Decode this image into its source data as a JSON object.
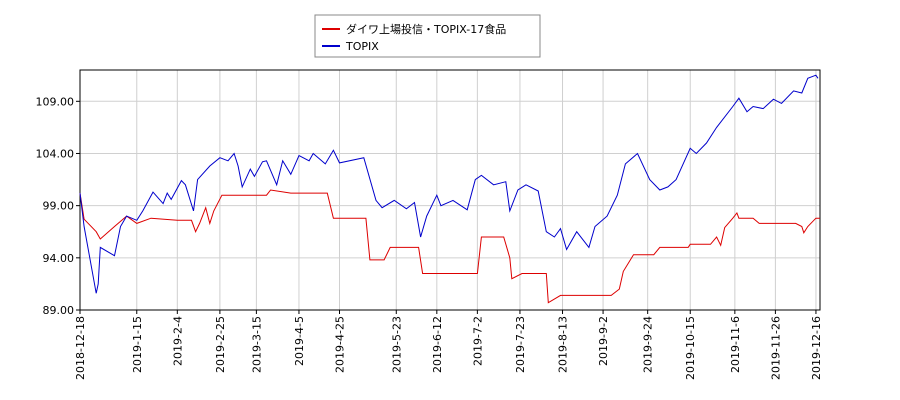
{
  "chart_data": {
    "type": "line",
    "series": [
      {
        "name": "ダイワ上場投信・TOPIX-17食品",
        "color": "#dd0000",
        "x": [
          "2018-12-18",
          "2018-12-20",
          "2018-12-26",
          "2018-12-28",
          "2019-1-4",
          "2019-1-10",
          "2019-1-15",
          "2019-1-22",
          "2019-2-4",
          "2019-2-11",
          "2019-2-13",
          "2019-2-15",
          "2019-2-18",
          "2019-2-20",
          "2019-2-22",
          "2019-2-26",
          "2019-3-20",
          "2019-3-22",
          "2019-4-1",
          "2019-4-19",
          "2019-4-22",
          "2019-5-8",
          "2019-5-10",
          "2019-5-17",
          "2019-5-20",
          "2019-6-3",
          "2019-6-5",
          "2019-7-2",
          "2019-7-4",
          "2019-7-15",
          "2019-7-18",
          "2019-7-19",
          "2019-7-24",
          "2019-8-5",
          "2019-8-6",
          "2019-8-12",
          "2019-9-6",
          "2019-9-10",
          "2019-9-12",
          "2019-9-17",
          "2019-9-27",
          "2019-9-30",
          "2019-10-14",
          "2019-10-15",
          "2019-10-25",
          "2019-10-28",
          "2019-10-30",
          "2019-11-1",
          "2019-11-5",
          "2019-11-7",
          "2019-11-8",
          "2019-11-15",
          "2019-11-18",
          "2019-12-6",
          "2019-12-9",
          "2019-12-10",
          "2019-12-12",
          "2019-12-16",
          "2019-12-18"
        ],
        "values": [
          100.2,
          97.7,
          96.5,
          95.8,
          97.0,
          98.0,
          97.3,
          97.8,
          97.6,
          97.6,
          96.5,
          97.3,
          98.8,
          97.3,
          98.5,
          100.0,
          100.0,
          100.5,
          100.2,
          100.2,
          97.8,
          97.8,
          93.8,
          93.8,
          95.0,
          95.0,
          92.5,
          92.5,
          96.0,
          96.0,
          94.0,
          92.0,
          92.5,
          92.5,
          89.7,
          90.4,
          90.4,
          91.0,
          92.7,
          94.3,
          94.3,
          95.0,
          95.0,
          95.3,
          95.3,
          96.0,
          95.2,
          96.9,
          97.8,
          98.3,
          97.8,
          97.8,
          97.3,
          97.3,
          97.0,
          96.4,
          97.0,
          97.8,
          97.8
        ]
      },
      {
        "name": "TOPIX",
        "color": "#0000cc",
        "x": [
          "2018-12-18",
          "2018-12-20",
          "2018-12-26",
          "2018-12-27",
          "2018-12-28",
          "2019-1-4",
          "2019-1-7",
          "2019-1-10",
          "2019-1-15",
          "2019-1-18",
          "2019-1-23",
          "2019-1-28",
          "2019-1-30",
          "2019-2-1",
          "2019-2-6",
          "2019-2-8",
          "2019-2-12",
          "2019-2-14",
          "2019-2-20",
          "2019-2-25",
          "2019-3-1",
          "2019-3-4",
          "2019-3-6",
          "2019-3-8",
          "2019-3-12",
          "2019-3-14",
          "2019-3-18",
          "2019-3-20",
          "2019-3-25",
          "2019-3-28",
          "2019-4-1",
          "2019-4-5",
          "2019-4-10",
          "2019-4-12",
          "2019-4-18",
          "2019-4-22",
          "2019-4-25",
          "2019-5-7",
          "2019-5-13",
          "2019-5-16",
          "2019-5-22",
          "2019-5-28",
          "2019-6-1",
          "2019-6-4",
          "2019-6-7",
          "2019-6-12",
          "2019-6-14",
          "2019-6-20",
          "2019-6-27",
          "2019-7-1",
          "2019-7-4",
          "2019-7-10",
          "2019-7-16",
          "2019-7-18",
          "2019-7-22",
          "2019-7-26",
          "2019-8-1",
          "2019-8-5",
          "2019-8-9",
          "2019-8-12",
          "2019-8-15",
          "2019-8-20",
          "2019-8-26",
          "2019-8-29",
          "2019-9-4",
          "2019-9-9",
          "2019-9-13",
          "2019-9-19",
          "2019-9-25",
          "2019-9-30",
          "2019-10-4",
          "2019-10-8",
          "2019-10-15",
          "2019-10-18",
          "2019-10-23",
          "2019-10-28",
          "2019-11-5",
          "2019-11-8",
          "2019-11-12",
          "2019-11-15",
          "2019-11-20",
          "2019-11-25",
          "2019-11-29",
          "2019-12-5",
          "2019-12-9",
          "2019-12-12",
          "2019-12-16",
          "2019-12-17"
        ],
        "values": [
          100.2,
          97.0,
          90.6,
          91.5,
          95.0,
          94.2,
          97.0,
          98.0,
          97.6,
          98.5,
          100.3,
          99.2,
          100.2,
          99.6,
          101.4,
          101.0,
          98.5,
          101.5,
          102.8,
          103.6,
          103.3,
          104.0,
          102.8,
          100.8,
          102.5,
          101.8,
          103.2,
          103.3,
          101.0,
          103.3,
          102.0,
          103.8,
          103.3,
          104.0,
          103.0,
          104.3,
          103.1,
          103.6,
          99.5,
          98.8,
          99.5,
          98.7,
          99.3,
          96.0,
          98.0,
          100.0,
          99.0,
          99.5,
          98.6,
          101.5,
          101.9,
          101.0,
          101.3,
          98.5,
          100.5,
          101.0,
          100.4,
          96.5,
          96.0,
          96.8,
          94.8,
          96.5,
          95.0,
          97.0,
          98.0,
          100.0,
          103.0,
          104.0,
          101.5,
          100.5,
          100.8,
          101.5,
          104.5,
          104.0,
          105.0,
          106.5,
          108.5,
          109.3,
          108.0,
          108.5,
          108.3,
          109.2,
          108.8,
          110.0,
          109.8,
          111.2,
          111.5,
          111.2
        ]
      }
    ],
    "xlim": [
      "2018-12-18",
      "2019-12-18"
    ],
    "xticks": [
      "2018-12-18",
      "2019-1-15",
      "2019-2-4",
      "2019-2-25",
      "2019-3-15",
      "2019-4-5",
      "2019-4-25",
      "2019-5-23",
      "2019-6-12",
      "2019-7-2",
      "2019-7-23",
      "2019-8-13",
      "2019-9-2",
      "2019-9-24",
      "2019-10-15",
      "2019-11-6",
      "2019-11-26",
      "2019-12-16"
    ],
    "ylim": [
      89,
      112
    ],
    "yticks": [
      {
        "value": 89,
        "label": "89.00"
      },
      {
        "value": 94,
        "label": "94.00"
      },
      {
        "value": 99,
        "label": "99.00"
      },
      {
        "value": 104,
        "label": "104.00"
      },
      {
        "value": 109,
        "label": "109.00"
      }
    ],
    "grid": true,
    "legend": "top"
  }
}
